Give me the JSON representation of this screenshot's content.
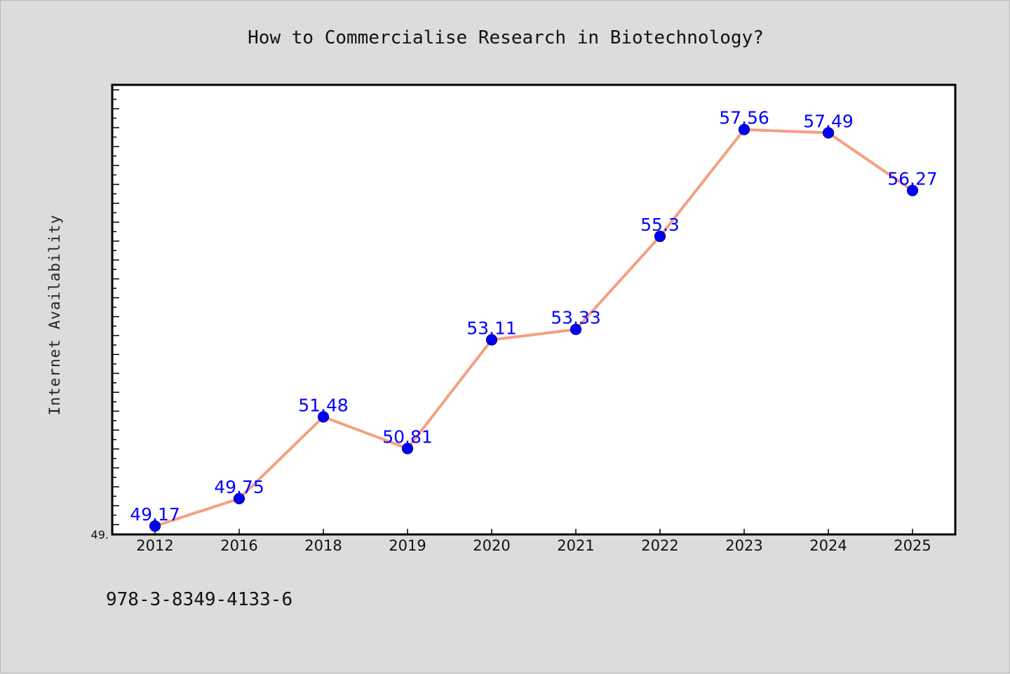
{
  "chart_data": {
    "type": "line",
    "title": "How to Commercialise Research in Biotechnology?",
    "xlabel": "",
    "ylabel": "Internet Availability",
    "categories": [
      "2012",
      "2016",
      "2018",
      "2019",
      "2020",
      "2021",
      "2022",
      "2023",
      "2024",
      "2025"
    ],
    "series": [
      {
        "values": [
          49.17,
          49.75,
          51.48,
          50.81,
          53.11,
          53.33,
          55.3,
          57.56,
          57.49,
          56.27
        ],
        "labels": [
          "49.17",
          "49.75",
          "51.48",
          "50.81",
          "53.11",
          "53.33",
          "55.3",
          "57.56",
          "57.49",
          "56.27"
        ]
      }
    ],
    "ylim": [
      49.17,
      58.6
    ],
    "y_tick_label": "49.",
    "grid": false,
    "line_color": "#f4a080",
    "marker_color": "#0000ff",
    "label_color": "#0000ff"
  },
  "footer": {
    "isbn": "978-3-8349-4133-6"
  }
}
